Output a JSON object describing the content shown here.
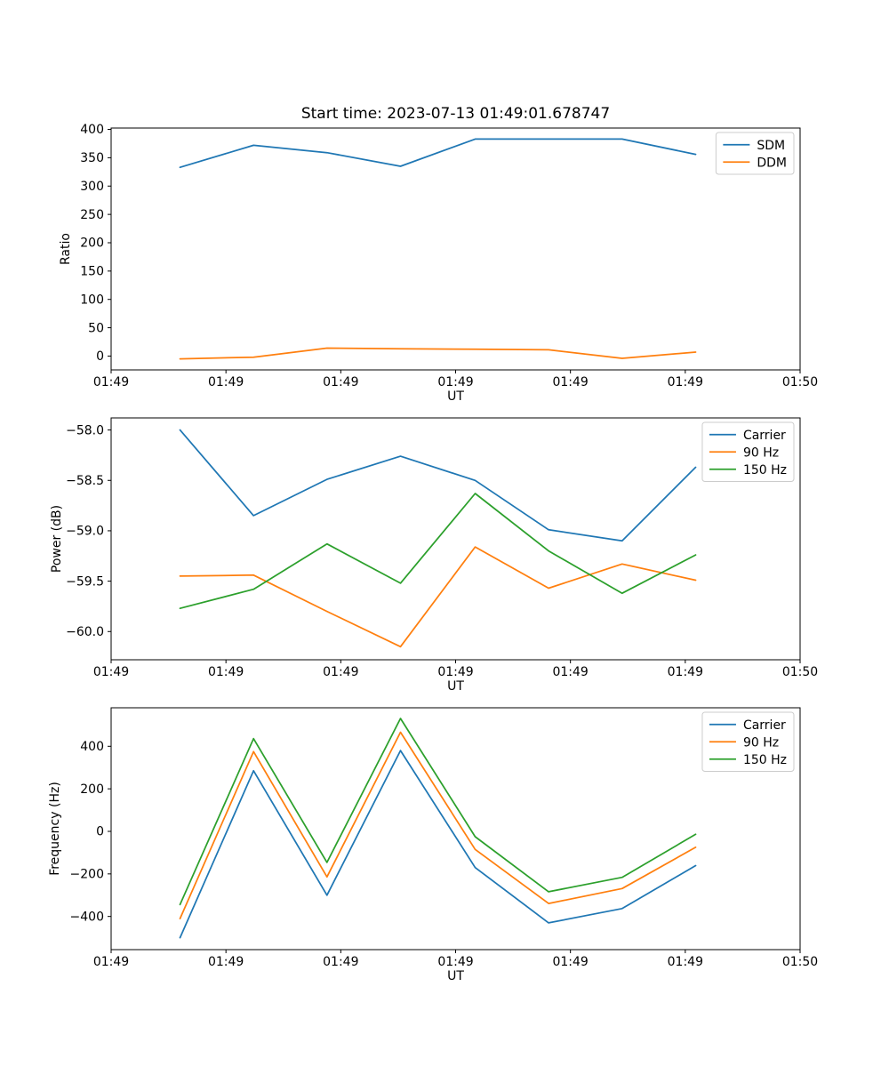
{
  "title": "Start time: 2023-07-13 01:49:01.678747",
  "chart_data": [
    {
      "type": "line",
      "ylabel": "Ratio",
      "xlabel": "UT",
      "legend_position": "upper right",
      "grid": false,
      "xlim": [
        0,
        60
      ],
      "x_tick_seconds": [
        0,
        10,
        20,
        30,
        40,
        50,
        60
      ],
      "x_tick_labels": [
        "01:49",
        "01:49",
        "01:49",
        "01:49",
        "01:49",
        "01:49",
        "01:50"
      ],
      "ylim": [
        -24.4,
        402.4
      ],
      "y_ticks": [
        0,
        50,
        100,
        150,
        200,
        250,
        300,
        350,
        400
      ],
      "y_tick_labels": [
        "0",
        "50",
        "100",
        "150",
        "200",
        "250",
        "300",
        "350",
        "400"
      ],
      "x_seconds": [
        6.0,
        12.4,
        18.8,
        25.2,
        31.7,
        38.1,
        44.5,
        50.9
      ],
      "series": [
        {
          "name": "SDM",
          "color": "#1f77b4",
          "values": [
            333,
            372,
            359,
            335,
            383,
            383,
            383,
            356
          ]
        },
        {
          "name": "DDM",
          "color": "#ff7f0e",
          "values": [
            -5,
            -2,
            14,
            13,
            12,
            11,
            -4,
            7
          ]
        }
      ]
    },
    {
      "type": "line",
      "ylabel": "Power (dB)",
      "xlabel": "UT",
      "legend_position": "upper right",
      "grid": false,
      "xlim": [
        0,
        60
      ],
      "x_tick_seconds": [
        0,
        10,
        20,
        30,
        40,
        50,
        60
      ],
      "x_tick_labels": [
        "01:49",
        "01:49",
        "01:49",
        "01:49",
        "01:49",
        "01:49",
        "01:50"
      ],
      "ylim": [
        -60.28,
        -57.88
      ],
      "y_ticks": [
        -58.0,
        -58.5,
        -59.0,
        -59.5,
        -60.0
      ],
      "y_tick_labels": [
        "−58.0",
        "−58.5",
        "−59.0",
        "−59.5",
        "−60.0"
      ],
      "x_seconds": [
        6.0,
        12.4,
        18.8,
        25.2,
        31.7,
        38.1,
        44.5,
        50.9
      ],
      "series": [
        {
          "name": "Carrier",
          "color": "#1f77b4",
          "values": [
            -58.0,
            -58.85,
            -58.49,
            -58.26,
            -58.5,
            -58.99,
            -59.1,
            -58.37
          ]
        },
        {
          "name": "90 Hz",
          "color": "#ff7f0e",
          "values": [
            -59.45,
            -59.44,
            -59.8,
            -60.15,
            -59.16,
            -59.57,
            -59.33,
            -59.49
          ]
        },
        {
          "name": "150 Hz",
          "color": "#2ca02c",
          "values": [
            -59.77,
            -59.58,
            -59.13,
            -59.52,
            -58.63,
            -59.2,
            -59.62,
            -59.24
          ]
        }
      ]
    },
    {
      "type": "line",
      "ylabel": "Frequency (Hz)",
      "xlabel": "UT",
      "legend_position": "upper right",
      "grid": false,
      "xlim": [
        0,
        60
      ],
      "x_tick_seconds": [
        0,
        10,
        20,
        30,
        40,
        50,
        60
      ],
      "x_tick_labels": [
        "01:49",
        "01:49",
        "01:49",
        "01:49",
        "01:49",
        "01:49",
        "01:50"
      ],
      "ylim": [
        -556,
        581
      ],
      "y_ticks": [
        400,
        200,
        0,
        -200,
        -400
      ],
      "y_tick_labels": [
        "400",
        "200",
        "0",
        "−200",
        "−400"
      ],
      "x_seconds": [
        6.0,
        12.4,
        18.8,
        25.2,
        31.7,
        38.1,
        44.5,
        50.9
      ],
      "series": [
        {
          "name": "Carrier",
          "color": "#1f77b4",
          "values": [
            -500,
            285,
            -300,
            380,
            -170,
            -430,
            -363,
            -161
          ]
        },
        {
          "name": "90 Hz",
          "color": "#ff7f0e",
          "values": [
            -410,
            375,
            -214,
            466,
            -85,
            -339,
            -269,
            -75
          ]
        },
        {
          "name": "150 Hz",
          "color": "#2ca02c",
          "values": [
            -344,
            436,
            -146,
            531,
            -25,
            -284,
            -216,
            -14
          ]
        }
      ]
    }
  ]
}
